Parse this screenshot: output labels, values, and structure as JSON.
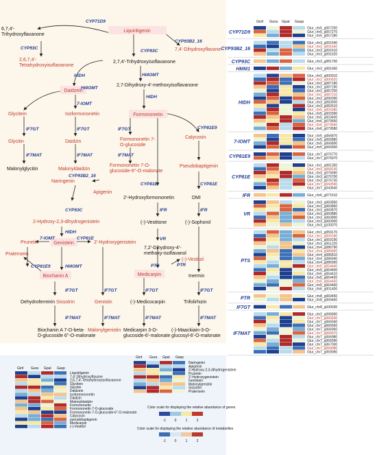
{
  "colors": {
    "blue_dark": "#1f3a93",
    "red_text": "#c0392b",
    "bg_pathway": "#fdf6ea",
    "bg_legend": "#eef4f9"
  },
  "pathway": {
    "nodes": {
      "liquiritigenin": "Liquiritigenin",
      "trihydroxyflavanone_l1": "6,7,4'-",
      "trihydroxyflavanone_l2": "Trihydroxyflavanone",
      "dihydroxyflavanone": "7,4'-Dihydroxyflavone",
      "tetrahydroxyisoflavanone_l1": "2,6,7,4'-",
      "tetrahydroxyisoflavanone_l2": "Tetrahydroxyisoflavanone",
      "trihydroxyisoflavanone": "2,7,4'-Trihydroxyisoflavanone",
      "daidzein": "Daidzein",
      "dihydroxy_methoxy": "2,7-Dihydroxy-4'-methoxyisoflavanone",
      "glycitein": "Glycitein",
      "isoformononetin": "Isoformononetin",
      "formononetin": "Formononetin",
      "glycitin": "Glycitin",
      "daidzin": "Daidzin",
      "formononetin_glucoside_l1": "Formononetin 7-",
      "formononetin_glucoside_l2": "O-glucoside",
      "calycosin": "Calycosin",
      "malonylglycitin": "Malonylglycitin",
      "malonyldaidzin": "Malonyldaidzin",
      "formononetin_malonate_l1": "Formononetin 7-O-",
      "formononetin_malonate_l2": "glucoside-6''-O-malonate",
      "pseudobaptigenin": "Pseudobaptigenin",
      "naringenin": "Naringenin",
      "apigenin": "Apigenin",
      "hydroxyformononetin": "2'-Hydroxyformononetin",
      "dmi": "DMI",
      "hydroxy_dihydrogenistein": "2-Hydroxy-2,3-dihydrogenistein",
      "vestitone": "(-)-Vestitone",
      "sophorol": "(-)-Sophorol",
      "prunetin": "Prunetin",
      "genistein": "Genistein",
      "hydroxygenistein": "2'-Hydroxygenistein",
      "dihydroxy_methoxyisoflavanol_l1": "7,2'-Dihydroxy-4'-",
      "dihydroxy_methoxyisoflavanol_l2": "methoxy-isoflavanol",
      "vestitol": "(-)-Vestitol",
      "pratensein": "Pratensein",
      "biochanin_a": "Biochanin A",
      "medicarpin": "Medicarpin",
      "inermin": "Inermin",
      "dehydroferreirin": "Dehydroferreirin",
      "sissotrin": "Sissotrin",
      "genistin": "Genistin",
      "medicocarpin": "(-)-Medicocarpin",
      "trifolirhizin": "Trifolirhizin",
      "biochanin_malonate_l1": "Biochanin A 7-O-beta-",
      "biochanin_malonate_l2": "D-glucoside 6''-O-malonate",
      "malonylgenistin": "Malonylgenistin",
      "medicarpin_malonate_l1": "Medicarpin 3-O-",
      "medicarpin_malonate_l2": "glucoside-6'-malonate",
      "maackiain_malonate_l1": "(-)-Maackiain-3-O-",
      "maackiain_malonate_l2": "glucosyl-6'-O-malonate"
    },
    "enzymes": {
      "cyp71d9": "CYP71D9",
      "cyp93b2": "CYP93B2_16",
      "cyp93c_top": "CYP93C",
      "cyp93c_mid": "CYP93C",
      "hidh_top": "HIDH",
      "hi4omt_top": "HI4OMT",
      "hi4omt_mid": "HI4OMT",
      "hidh_mid": "HIDH",
      "seven_iomt": "7-IOMT",
      "if7gt_1": "IF7GT",
      "if7gt_2": "IF7GT",
      "if7gt_3": "IF7GT",
      "cyp81e9_top": "CYP81E9",
      "if7mat_1": "IF7MAT",
      "if7mat_2": "IF7MAT",
      "if7mat_3": "IF7MAT",
      "cyp81e_a": "CYP81E",
      "cyp81e_b": "CYP81E",
      "cyp93b2_b": "CYP93B2_16",
      "cyp93c_b": "CYP93C",
      "ifr_a": "IFR",
      "ifr_b": "IFR",
      "hidh_b": "HIDH",
      "seven_iomt_b": "7-IOMT",
      "cyp81e_c": "CYP81E",
      "vr": "VR",
      "pts_a": "PTS",
      "ptr": "PTR",
      "cyp81e9_b": "CYP81E9",
      "hi4omt_b": "HI4OMT",
      "if7gt_4": "IF7GT",
      "if7gt_5": "IF7GT",
      "if7gt_6": "IF7GT",
      "if7gt_7": "IF7GT",
      "if7mat_4": "IF7MAT",
      "if7mat_5": "IF7MAT",
      "if7mat_6": "IF7MAT",
      "if7mat_7": "IF7MAT"
    }
  },
  "heatmap": {
    "headers": [
      "Ginf",
      "Gura",
      "Gpal",
      "Gasp"
    ],
    "groups": [
      {
        "label": "CYP71D9",
        "genes": [
          "Glur_chr5_g057250",
          "Glur_chr5_g057270",
          "Glur_chr5_g057280"
        ]
      },
      {
        "label": "CYP93B2_16",
        "genes": [
          "Glur_chr3_g091540",
          "Glur_chr3_g091550",
          "Glur_chr3_g091610",
          "Glur_chr3_g091620"
        ]
      },
      {
        "label": "CYP93C",
        "genes": [
          "Glur_chr3_g081700"
        ]
      },
      {
        "label": "HMM1",
        "genes": [
          "Glur_chr3_g081660"
        ]
      },
      {
        "label": "HIDH",
        "genes": [
          "Glur_chr2_g000910",
          "Glur_chr2_g000920",
          "Glur_chr2_g087180",
          "Glur_chr2_g087190",
          "Glur_chr2_g087200",
          "Glur_chr2_g087210",
          "Glur_chr2_g090390",
          "Glur_chr3_g082600",
          "Glur_chr3_g082610",
          "Glur_chr5_g003380",
          "Glur_chr5_g003390",
          "Glur_chr5_g003400",
          "Glur_chr6_g079550",
          "Glur_chr6_g079560",
          "Glur_chr6_g079580"
        ]
      },
      {
        "label": "7-IOMT",
        "genes": [
          "Glur_chr5_g066870",
          "Glur_chr5_g066880",
          "Glur_chr5_g066890",
          "Glur_chr5_g066900"
        ]
      },
      {
        "label": "CYP81E9",
        "genes": [
          "Glur_chr7_g076770",
          "Glur_chr7_g076970"
        ]
      },
      {
        "label": "CYP81E",
        "genes": [
          "Glur_chr1_g081350",
          "Glur_chr3_g058130",
          "Glur_chr3_g076690",
          "Glur_chr3_g076700",
          "Glur_chr3_g076730",
          "Glur_chr7_g043590",
          "Glur_chr7_g043640"
        ]
      },
      {
        "label": "IFR",
        "genes": [
          "Glur_chr6_g071610"
        ]
      },
      {
        "label": "VR",
        "genes": [
          "Glur_chr3_g060850",
          "Glur_chr3_g060860",
          "Glur_chr3_g060870",
          "Glur_chr3_g060880",
          "Glur_chr3_g060890",
          "Glur_chr3_g060900",
          "Glur_chr3_g100070"
        ]
      },
      {
        "label": "PTS",
        "genes": [
          "Glur_chr1_g059170",
          "Glur_chr1_g059180",
          "Glur_chr1_g059190",
          "Glur_chr3_g051220",
          "Glur_chr4_g086790",
          "Glur_chr4_g086800",
          "Glur_chr4_g086810",
          "Glur_chr4_g086940",
          "Glur_chr4_g086950",
          "Glur_chr5_g054440",
          "Glur_chr5_g064400",
          "Glur_chr5_g064410",
          "Glur_chr5_g064420",
          "Glur_chr5_g064450",
          "Glur_chr5_g064460",
          "Glur_chr6_g001400"
        ]
      },
      {
        "label": "PTR",
        "genes": [
          "Glur_chr8_g069450",
          "Glur_chr8_g069460"
        ]
      },
      {
        "label": "IF7GT",
        "genes": [
          "Glur_chr8_g030030"
        ]
      },
      {
        "label": "IF7MAT",
        "genes": [
          "Glur_chr2_g096890",
          "Glur_chr7_g066930",
          "Glur_chr7_g066940",
          "Glur_chr7_g066950",
          "Glur_chr7_g066960",
          "Glur_chr7_g066970",
          "Glur_chr7_g066980",
          "Glur_chr7_g066990",
          "Glur_chr7_g067000",
          "Glur_chr7_g059080",
          "Glur_chr7_g059090"
        ]
      }
    ]
  },
  "metabolite_legend": {
    "headers": [
      "Ginf",
      "Gura",
      "Gpal",
      "Gasp"
    ],
    "list_a": [
      "Liquiritigenin",
      "7,4'-Dihydroxyflavone",
      "2,6,7,4'-Tetrahydroxyisoflavanone",
      "Glycitein",
      "Glycitin",
      "Daidzein",
      "Isoformononetin",
      "Daidzin",
      "Malonyldaidzin",
      "Formononetin",
      "Formononetin 7-O-glucoside",
      "Formononetin 7-O-glucoside-6''-O-malonate",
      "Calycosin",
      "pseudobaptigenin",
      "Medicarpin",
      "(-)-Vestitol"
    ],
    "list_b": [
      "Naringenin",
      "Apigenin",
      "2-Hydroxy-2,3-dihydrogenistein",
      "Prunetin",
      "2'-Hydroxygenistein",
      "Genistein",
      "Malonylgenistin",
      "Sissotrin",
      "Pratensein"
    ],
    "gene_scale_label": "Color scale for displaying the relative abundance of genes",
    "gene_scale_ticks": [
      "-1",
      "0",
      "1",
      "2"
    ],
    "met_scale_label": "Color scale for displaying the relative abundance of metabolites",
    "met_scale_ticks": [
      "-1",
      "0",
      "1",
      "2"
    ]
  }
}
